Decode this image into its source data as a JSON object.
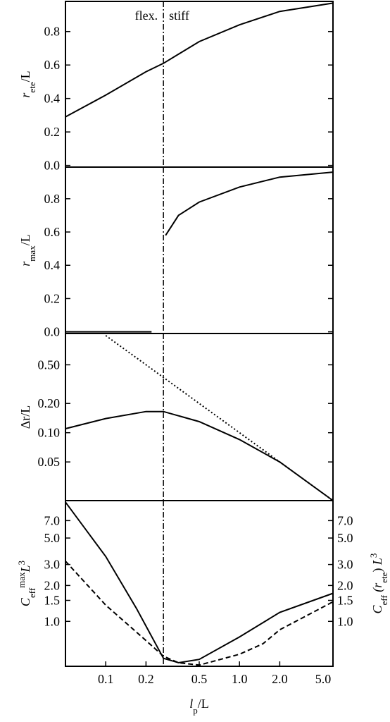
{
  "chart_data": [
    {
      "type": "line",
      "xscale": "log",
      "xlim": [
        0.05,
        5
      ],
      "ylim": [
        -0.01,
        0.98
      ],
      "vline": 0.27,
      "ylabel": [
        {
          "text": "r",
          "style": "italic"
        },
        {
          "text": "ete",
          "style": "sub"
        },
        {
          "text": "/L"
        }
      ],
      "yticks": [
        {
          "value": 0,
          "label": "0.0"
        },
        0.2,
        0.4,
        0.6,
        0.8
      ],
      "annotations": [
        {
          "text": "flex."
        },
        {
          "text": "stiff"
        }
      ],
      "series": [
        {
          "color": "#000000",
          "dash": "solid",
          "x": [
            0.05,
            0.1,
            0.2,
            0.27,
            0.5,
            1,
            2,
            5
          ],
          "values": [
            0.29,
            0.42,
            0.56,
            0.61,
            0.74,
            0.84,
            0.92,
            0.97
          ]
        }
      ]
    },
    {
      "type": "line",
      "xscale": "log",
      "xlim": [
        0.05,
        5
      ],
      "ylim": [
        -0.01,
        0.99
      ],
      "vline": 0.27,
      "ylabel": [
        {
          "text": "r",
          "style": "italic"
        },
        {
          "text": "max",
          "style": "sub"
        },
        {
          "text": "/L"
        }
      ],
      "yticks": [
        {
          "value": 0,
          "label": "0.0"
        },
        0.2,
        0.4,
        0.6,
        0.8
      ],
      "series": [
        {
          "color": "#000000",
          "dash": "solid",
          "x": [
            0.05,
            0.22,
            0.27,
            0.28,
            0.35,
            0.5,
            1,
            2,
            5
          ],
          "values": [
            0,
            0,
            null,
            0.58,
            0.7,
            0.78,
            0.87,
            0.93,
            0.96
          ]
        }
      ]
    },
    {
      "type": "line",
      "xscale": "log",
      "xlim": [
        0.05,
        5
      ],
      "yscale": "log",
      "ylim": [
        0.02,
        1.05
      ],
      "vline": 0.27,
      "ylabel": [
        {
          "text": "Δr/L"
        }
      ],
      "yticks": [
        0.05,
        {
          "value": 0.1,
          "label": "0.10"
        },
        {
          "value": 0.2,
          "label": "0.20"
        },
        {
          "value": 0.5,
          "label": "0.50"
        }
      ],
      "series": [
        {
          "color": "#000000",
          "dash": "solid",
          "x": [
            0.05,
            0.1,
            0.2,
            0.27,
            0.5,
            1,
            2,
            5
          ],
          "values": [
            0.11,
            0.14,
            0.165,
            0.165,
            0.13,
            0.085,
            0.05,
            0.02
          ]
        },
        {
          "color": "#000000",
          "dash": "dotted",
          "x": [
            0.1,
            5
          ],
          "values": [
            1.0,
            0.02
          ]
        }
      ]
    },
    {
      "type": "line",
      "xscale": "log",
      "xlim": [
        0.05,
        5
      ],
      "yscale": "log",
      "ylim": [
        0.42,
        10.3
      ],
      "y2lim": [
        0.42,
        10.3
      ],
      "vline": 0.27,
      "ylabel": [
        {
          "text": "C",
          "style": "italic"
        },
        {
          "text": "eff",
          "style": "sub"
        },
        {
          "text": "max",
          "style": "sup"
        },
        {
          "text": "L",
          "style": "italic"
        },
        {
          "text": "3",
          "style": "sup"
        }
      ],
      "y2label": [
        {
          "text": "C",
          "style": "italic"
        },
        {
          "text": "eff",
          "style": "sub"
        },
        {
          "text": " (r",
          "style": "italic"
        },
        {
          "text": "ete",
          "style": "sub"
        },
        {
          "text": ") "
        },
        {
          "text": "L",
          "style": "italic"
        },
        {
          "text": "3",
          "style": "sup"
        }
      ],
      "xlabel": [
        {
          "text": "l",
          "style": "italic"
        },
        {
          "text": "p",
          "style": "sub"
        },
        {
          "text": "/L"
        }
      ],
      "xticks": [
        0.1,
        0.2,
        0.5,
        {
          "value": 1,
          "label": "1.0"
        },
        {
          "value": 2,
          "label": "2.0"
        },
        {
          "value": 5,
          "label": "5.0"
        }
      ],
      "yticks": [
        {
          "value": 1,
          "label": "1.0"
        },
        1.5,
        {
          "value": 2,
          "label": "2.0"
        },
        {
          "value": 3,
          "label": "3.0"
        },
        {
          "value": 5,
          "label": "5.0"
        },
        {
          "value": 7,
          "label": "7.0"
        }
      ],
      "y2ticks": [
        {
          "value": 1,
          "label": "1.0"
        },
        1.5,
        {
          "value": 2,
          "label": "2.0"
        },
        {
          "value": 3,
          "label": "3.0"
        },
        {
          "value": 5,
          "label": "5.0"
        },
        {
          "value": 7,
          "label": "7.0"
        }
      ],
      "series": [
        {
          "color": "#000000",
          "dash": "solid",
          "x": [
            0.05,
            0.1,
            0.17,
            0.27,
            0.35,
            0.5,
            1,
            2,
            5
          ],
          "values": [
            10,
            3.5,
            1.28,
            0.49,
            0.45,
            0.48,
            0.74,
            1.19,
            1.72
          ]
        },
        {
          "color": "#000000",
          "dash": "dashed",
          "axis": "y2",
          "x": [
            0.05,
            0.1,
            0.2,
            0.27,
            0.35,
            0.5,
            1,
            1.5,
            2,
            5
          ],
          "values": [
            3.2,
            1.37,
            0.69,
            0.51,
            0.45,
            0.43,
            0.53,
            0.65,
            0.85,
            1.46
          ]
        }
      ]
    }
  ]
}
